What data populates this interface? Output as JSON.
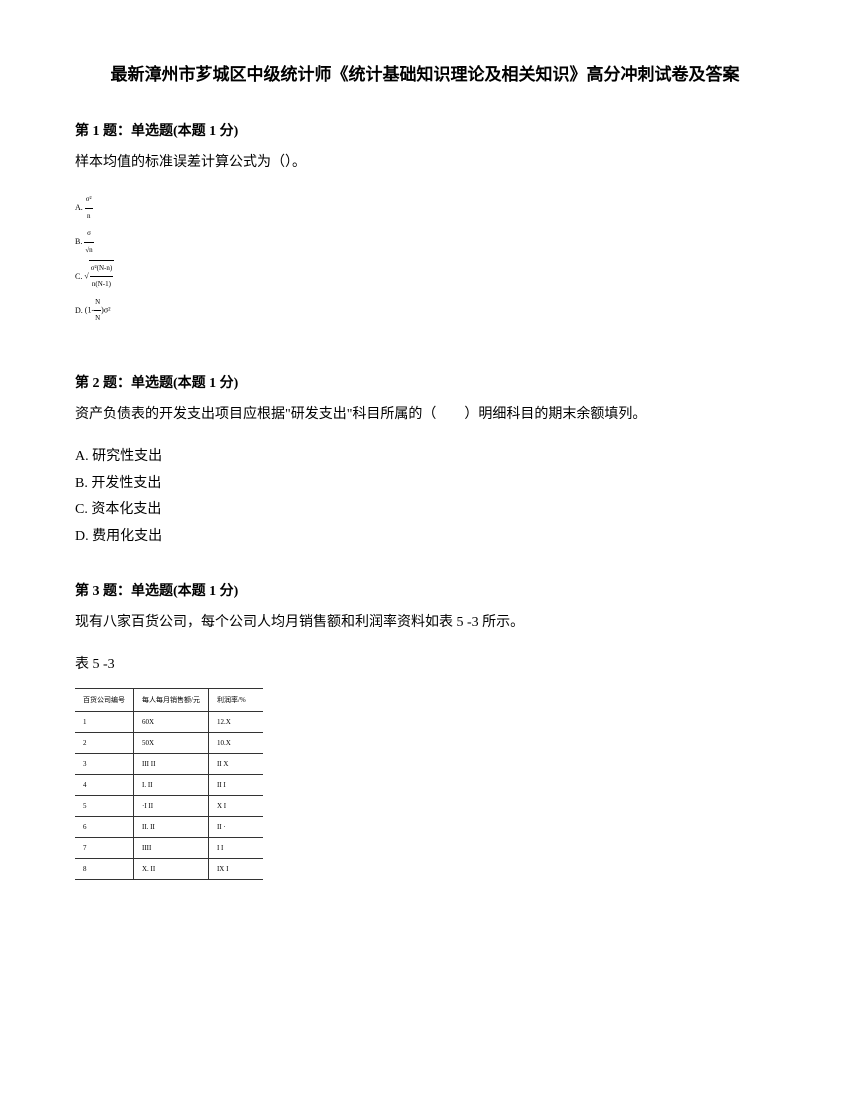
{
  "title": "最新漳州市芗城区中级统计师《统计基础知识理论及相关知识》高分冲刺试卷及答案",
  "q1": {
    "header": "第 1 题：单选题(本题 1 分)",
    "text": "样本均值的标准误差计算公式为（）。",
    "formulas": {
      "a_label": "A.",
      "b_label": "B.",
      "c_label": "C.",
      "d_label": "D."
    }
  },
  "q2": {
    "header": "第 2 题：单选题(本题 1 分)",
    "text": "资产负债表的开发支出项目应根据\"研发支出\"科目所属的（　　）明细科目的期末余额填列。",
    "opt_a": "A. 研究性支出",
    "opt_b": "B. 开发性支出",
    "opt_c": "C. 资本化支出",
    "opt_d": "D. 费用化支出"
  },
  "q3": {
    "header": "第 3 题：单选题(本题 1 分)",
    "text": "现有八家百货公司，每个公司人均月销售额和利润率资料如表 5 -3 所示。",
    "table_label": "表 5 -3",
    "table": {
      "header": [
        "百货公司编号",
        "每人每月销售额/元",
        "利润率/%"
      ],
      "rows": [
        [
          "1",
          "60X",
          "12.X"
        ],
        [
          "2",
          "50X",
          "10.X"
        ],
        [
          "3",
          "III II",
          "II X"
        ],
        [
          "4",
          "I. II",
          "II I"
        ],
        [
          "5",
          "·I II",
          "X I"
        ],
        [
          "6",
          "II. II",
          "II ·"
        ],
        [
          "7",
          "IIII",
          "I I"
        ],
        [
          "8",
          "X. II",
          "IX I"
        ]
      ]
    }
  }
}
